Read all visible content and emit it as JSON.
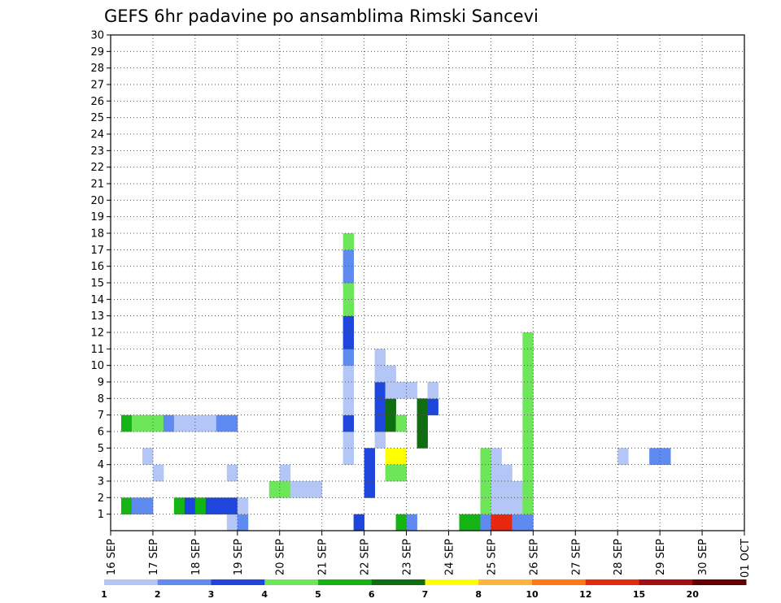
{
  "chart_data": {
    "type": "heatmap",
    "title": "GEFS 6hr padavine po ansamblima Rimski Sancevi",
    "x_tick_labels": [
      "16 SEP",
      "17 SEP",
      "18 SEP",
      "19 SEP",
      "20 SEP",
      "21 SEP",
      "22 SEP",
      "23 SEP",
      "24 SEP",
      "25 SEP",
      "26 SEP",
      "27 SEP",
      "28 SEP",
      "29 SEP",
      "30 SEP",
      "01 OCT"
    ],
    "y_tick_labels": [
      "1",
      "2",
      "3",
      "4",
      "5",
      "6",
      "7",
      "8",
      "9",
      "10",
      "11",
      "12",
      "13",
      "14",
      "15",
      "16",
      "17",
      "18",
      "19",
      "20",
      "21",
      "22",
      "23",
      "24",
      "25",
      "26",
      "27",
      "28",
      "29",
      "30"
    ],
    "xlim": [
      0,
      60
    ],
    "ylim": [
      0,
      30
    ],
    "grid": true,
    "color_scale": {
      "labels": [
        "1",
        "2",
        "3",
        "4",
        "5",
        "6",
        "7",
        "8",
        "10",
        "12",
        "15",
        "20"
      ],
      "colors": [
        "#b3c6f5",
        "#5f8bf0",
        "#1e46dc",
        "#6ee65a",
        "#14b414",
        "#0f6e0f",
        "#ffff00",
        "#ffb43c",
        "#ff7814",
        "#e6280f",
        "#a50f0f",
        "#640000"
      ]
    },
    "cells": [
      [
        11,
        0,
        0
      ],
      [
        12,
        0,
        1
      ],
      [
        23,
        0,
        2
      ],
      [
        27,
        0,
        4
      ],
      [
        28,
        0,
        1
      ],
      [
        33,
        0,
        4
      ],
      [
        34,
        0,
        4
      ],
      [
        35,
        0,
        1
      ],
      [
        36,
        0,
        1
      ],
      [
        36,
        0,
        9
      ],
      [
        37,
        0,
        9
      ],
      [
        38,
        0,
        1
      ],
      [
        39,
        0,
        1
      ],
      [
        1,
        1,
        4
      ],
      [
        2,
        1,
        1
      ],
      [
        3,
        1,
        1
      ],
      [
        6,
        1,
        4
      ],
      [
        7,
        1,
        2
      ],
      [
        8,
        1,
        4
      ],
      [
        9,
        1,
        2
      ],
      [
        10,
        1,
        2
      ],
      [
        11,
        1,
        2
      ],
      [
        12,
        1,
        0
      ],
      [
        15,
        2,
        3
      ],
      [
        16,
        2,
        3
      ],
      [
        17,
        2,
        0
      ],
      [
        18,
        2,
        0
      ],
      [
        19,
        2,
        0
      ],
      [
        4,
        3,
        0
      ],
      [
        11,
        3,
        0
      ],
      [
        16,
        3,
        0
      ],
      [
        3,
        4,
        0
      ],
      [
        22,
        4,
        0
      ],
      [
        26,
        4,
        6
      ],
      [
        27,
        4,
        6
      ],
      [
        48,
        4,
        0
      ],
      [
        51,
        4,
        1
      ],
      [
        52,
        4,
        1
      ],
      [
        22,
        5,
        0
      ],
      [
        22,
        6,
        2
      ],
      [
        22,
        7,
        0
      ],
      [
        22,
        8,
        0
      ],
      [
        22,
        9,
        0
      ],
      [
        22,
        10,
        1
      ],
      [
        22,
        11,
        2
      ],
      [
        22,
        12,
        2
      ],
      [
        22,
        13,
        3
      ],
      [
        22,
        14,
        3
      ],
      [
        22,
        15,
        1
      ],
      [
        22,
        16,
        1
      ],
      [
        22,
        17,
        3
      ],
      [
        1,
        6,
        4
      ],
      [
        2,
        6,
        3
      ],
      [
        3,
        6,
        3
      ],
      [
        4,
        6,
        3
      ],
      [
        5,
        6,
        1
      ],
      [
        6,
        6,
        0
      ],
      [
        7,
        6,
        0
      ],
      [
        8,
        6,
        0
      ],
      [
        9,
        6,
        0
      ],
      [
        10,
        6,
        1
      ],
      [
        11,
        6,
        1
      ],
      [
        24,
        2,
        2
      ],
      [
        24,
        3,
        2
      ],
      [
        24,
        4,
        2
      ],
      [
        25,
        5,
        0
      ],
      [
        25,
        6,
        2
      ],
      [
        25,
        7,
        2
      ],
      [
        25,
        8,
        2
      ],
      [
        25,
        9,
        0
      ],
      [
        25,
        10,
        0
      ],
      [
        26,
        3,
        3
      ],
      [
        26,
        6,
        5
      ],
      [
        26,
        7,
        5
      ],
      [
        26,
        8,
        0
      ],
      [
        26,
        9,
        0
      ],
      [
        27,
        3,
        3
      ],
      [
        27,
        6,
        3
      ],
      [
        27,
        8,
        0
      ],
      [
        28,
        8,
        0
      ],
      [
        29,
        5,
        5
      ],
      [
        29,
        6,
        5
      ],
      [
        29,
        7,
        5
      ],
      [
        30,
        7,
        2
      ],
      [
        30,
        8,
        0
      ],
      [
        35,
        1,
        3
      ],
      [
        35,
        2,
        3
      ],
      [
        35,
        3,
        3
      ],
      [
        35,
        4,
        3
      ],
      [
        36,
        1,
        0
      ],
      [
        36,
        2,
        0
      ],
      [
        36,
        3,
        0
      ],
      [
        36,
        4,
        0
      ],
      [
        37,
        1,
        0
      ],
      [
        37,
        2,
        0
      ],
      [
        37,
        3,
        0
      ],
      [
        38,
        1,
        0
      ],
      [
        38,
        2,
        0
      ],
      [
        39,
        1,
        3
      ],
      [
        39,
        2,
        3
      ],
      [
        39,
        3,
        3
      ],
      [
        39,
        4,
        3
      ],
      [
        39,
        5,
        3
      ],
      [
        39,
        6,
        3
      ],
      [
        39,
        7,
        3
      ],
      [
        39,
        8,
        3
      ],
      [
        39,
        9,
        3
      ],
      [
        39,
        10,
        3
      ],
      [
        39,
        11,
        3
      ]
    ]
  }
}
